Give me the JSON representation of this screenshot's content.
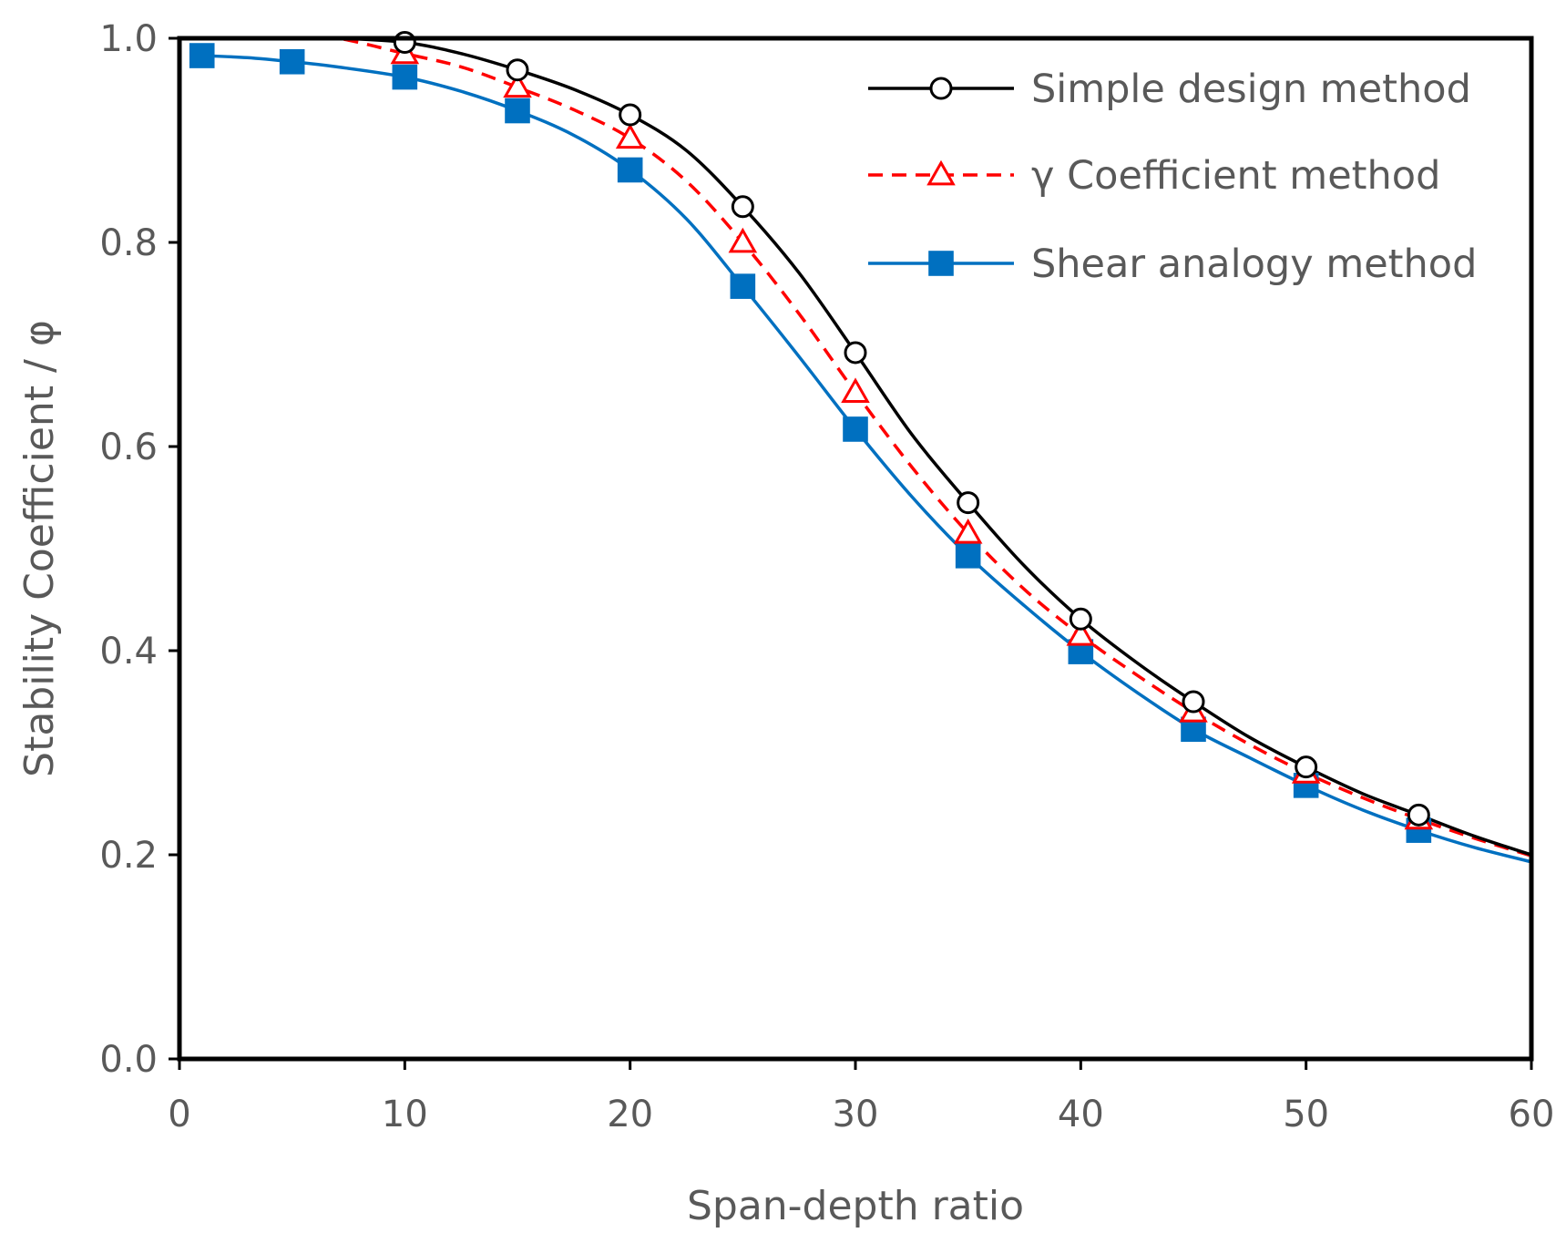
{
  "chart_data": {
    "type": "line",
    "title": "",
    "xlabel": "Span-depth ratio",
    "ylabel": "Stability Coefficient / φ",
    "xlim": [
      0,
      60
    ],
    "ylim": [
      0.0,
      1.0
    ],
    "xticks": [
      0,
      10,
      20,
      30,
      40,
      50,
      60
    ],
    "xtick_labels": [
      "0",
      "10",
      "20",
      "30",
      "40",
      "50",
      "60"
    ],
    "yticks": [
      0.0,
      0.2,
      0.4,
      0.6,
      0.8,
      1.0
    ],
    "ytick_labels": [
      "0.0",
      "0.2",
      "0.4",
      "0.6",
      "0.8",
      "1.0"
    ],
    "grid": false,
    "legend_position": "top-right",
    "series": [
      {
        "name": "Simple design method",
        "color": "#000000",
        "line_style": "solid",
        "marker": "open-circle",
        "curve": {
          "x": [
            1,
            3,
            5,
            7,
            10,
            12.5,
            15,
            17.5,
            20,
            22.5,
            25,
            27.5,
            30,
            32.5,
            35,
            37.5,
            40,
            42.5,
            45,
            47.5,
            50,
            52.5,
            55,
            57.5,
            60
          ],
          "y": [
            1.0,
            1.0,
            1.0,
            1.0,
            0.996,
            0.985,
            0.969,
            0.95,
            0.925,
            0.89,
            0.835,
            0.77,
            0.692,
            0.612,
            0.545,
            0.483,
            0.431,
            0.388,
            0.35,
            0.315,
            0.286,
            0.26,
            0.239,
            0.218,
            0.2
          ]
        },
        "markers": {
          "x": [
            10,
            15,
            20,
            25,
            30,
            35,
            40,
            45,
            50,
            55
          ],
          "y": [
            0.996,
            0.969,
            0.925,
            0.835,
            0.692,
            0.545,
            0.431,
            0.35,
            0.286,
            0.239
          ]
        }
      },
      {
        "name": "γ Coefficient method",
        "color": "#ff0000",
        "line_style": "dashed",
        "marker": "open-triangle",
        "curve": {
          "x": [
            1,
            3,
            5,
            7,
            10,
            12.5,
            15,
            17.5,
            20,
            22.5,
            25,
            27.5,
            30,
            32.5,
            35,
            37.5,
            40,
            42.5,
            45,
            47.5,
            50,
            52.5,
            55,
            57.5,
            60
          ],
          "y": [
            1.0,
            1.0,
            1.0,
            1.0,
            0.985,
            0.972,
            0.952,
            0.93,
            0.902,
            0.86,
            0.8,
            0.73,
            0.653,
            0.58,
            0.515,
            0.46,
            0.415,
            0.376,
            0.34,
            0.308,
            0.28,
            0.256,
            0.235,
            0.216,
            0.199
          ]
        },
        "markers": {
          "x": [
            10,
            15,
            20,
            25,
            30,
            35,
            40,
            45,
            50,
            55
          ],
          "y": [
            0.985,
            0.952,
            0.902,
            0.8,
            0.653,
            0.515,
            0.415,
            0.34,
            0.28,
            0.235
          ]
        }
      },
      {
        "name": "Shear analogy method",
        "color": "#0070c0",
        "line_style": "solid",
        "marker": "filled-square",
        "curve": {
          "x": [
            1,
            3,
            5,
            7,
            10,
            12.5,
            15,
            17.5,
            20,
            22.5,
            25,
            27.5,
            30,
            32.5,
            35,
            37.5,
            40,
            42.5,
            45,
            47.5,
            50,
            52.5,
            55,
            57.5,
            60
          ],
          "y": [
            0.983,
            0.981,
            0.977,
            0.972,
            0.962,
            0.948,
            0.929,
            0.905,
            0.871,
            0.823,
            0.757,
            0.688,
            0.617,
            0.551,
            0.493,
            0.444,
            0.399,
            0.359,
            0.323,
            0.295,
            0.268,
            0.244,
            0.224,
            0.207,
            0.193
          ]
        },
        "markers": {
          "x": [
            1,
            5,
            10,
            15,
            20,
            25,
            30,
            35,
            40,
            45,
            50,
            55
          ],
          "y": [
            0.983,
            0.977,
            0.962,
            0.929,
            0.871,
            0.757,
            0.617,
            0.493,
            0.399,
            0.323,
            0.268,
            0.224
          ]
        }
      }
    ]
  }
}
